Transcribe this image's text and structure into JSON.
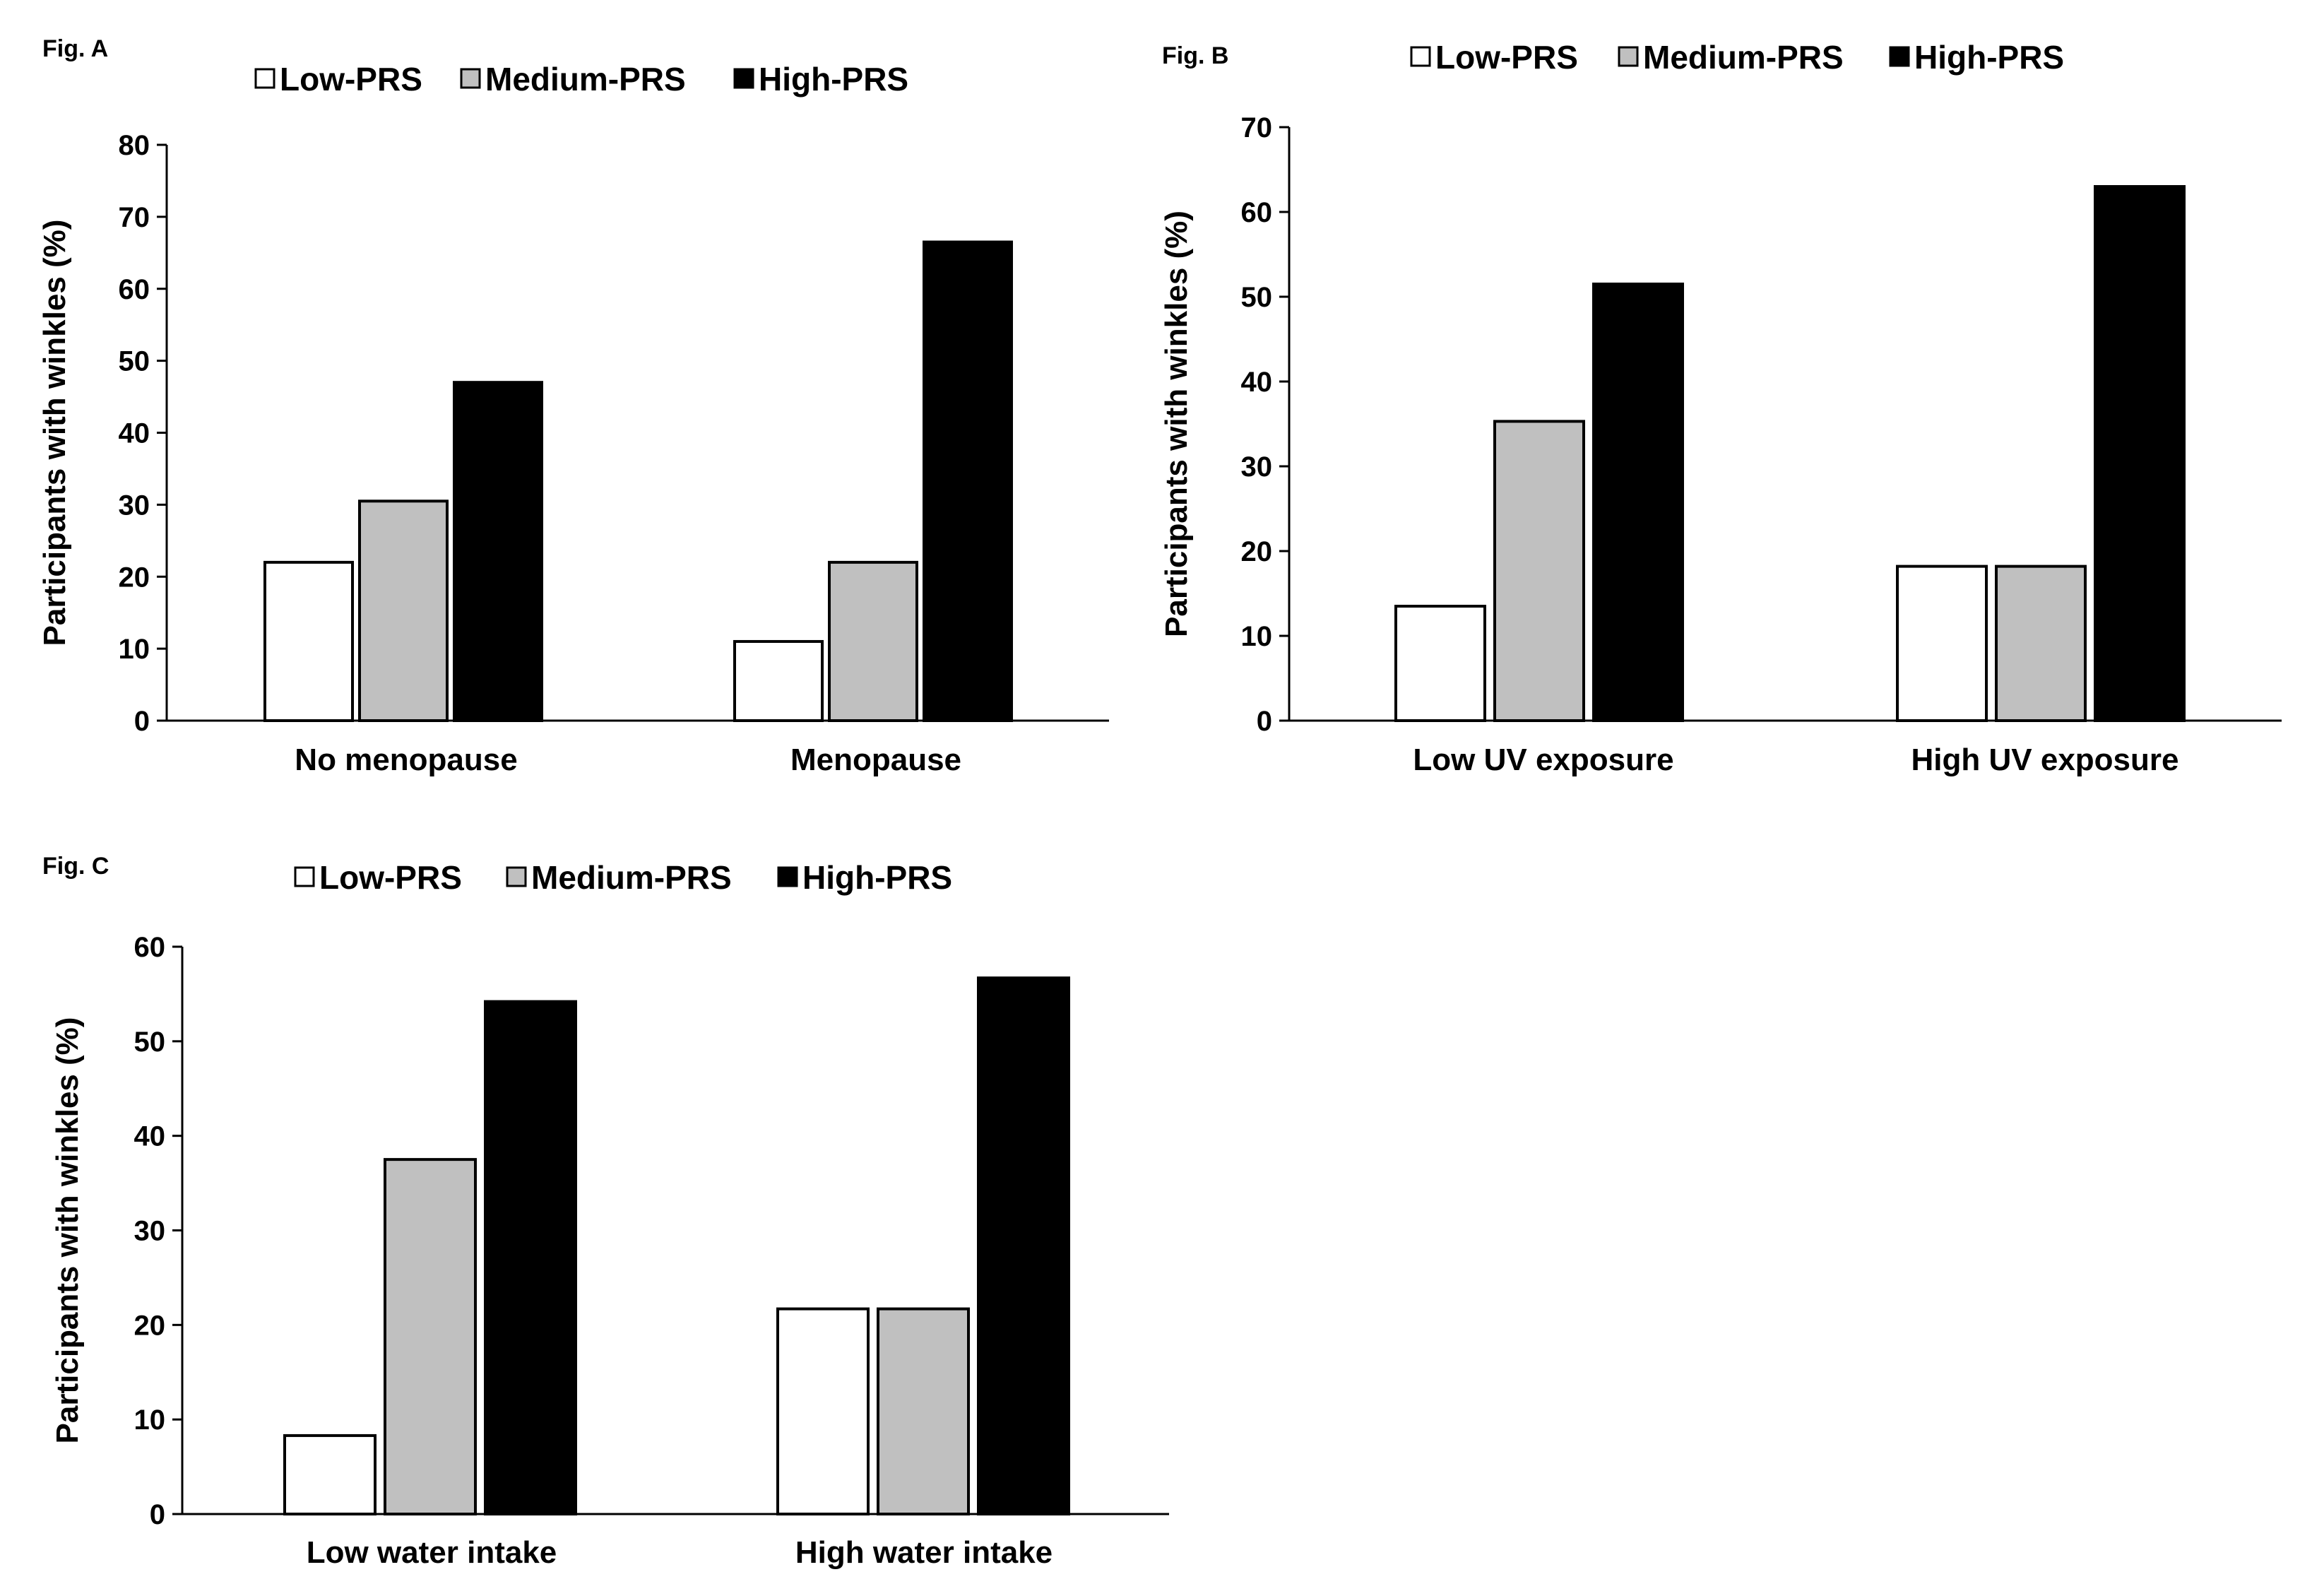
{
  "chart_data": [
    {
      "type": "bar",
      "figure_label": "Fig.  A",
      "categories": [
        "No menopause",
        "Menopause"
      ],
      "series": [
        {
          "name": "Low-PRS",
          "color": "#ffffff",
          "values": [
            22,
            11
          ]
        },
        {
          "name": "Medium-PRS",
          "color": "#c0c0c0",
          "values": [
            30.5,
            22
          ]
        },
        {
          "name": "High-PRS",
          "color": "#000000",
          "values": [
            47,
            66.5
          ]
        }
      ],
      "ylabel": "Participants with winkles (%)",
      "xlabel": "",
      "ylim": [
        0,
        80
      ],
      "yticks": [
        "0",
        "10",
        "20",
        "30",
        "40",
        "50",
        "60",
        "70",
        "80"
      ],
      "legend": "top"
    },
    {
      "type": "bar",
      "figure_label": "Fig.  B",
      "categories": [
        "Low UV exposure",
        "High UV exposure"
      ],
      "series": [
        {
          "name": "Low-PRS",
          "color": "#ffffff",
          "values": [
            13.5,
            18.2
          ]
        },
        {
          "name": "Medium-PRS",
          "color": "#c0c0c0",
          "values": [
            35.3,
            18.2
          ]
        },
        {
          "name": "High-PRS",
          "color": "#000000",
          "values": [
            51.5,
            63
          ]
        }
      ],
      "ylabel": "Participants with winkles (%)",
      "xlabel": "",
      "ylim": [
        0,
        70
      ],
      "yticks": [
        "0",
        "10",
        "20",
        "30",
        "40",
        "50",
        "60",
        "70"
      ],
      "legend": "top"
    },
    {
      "type": "bar",
      "figure_label": "Fig.  C",
      "categories": [
        "Low water intake",
        "High water intake"
      ],
      "series": [
        {
          "name": "Low-PRS",
          "color": "#ffffff",
          "values": [
            8.3,
            21.7
          ]
        },
        {
          "name": "Medium-PRS",
          "color": "#c0c0c0",
          "values": [
            37.5,
            21.7
          ]
        },
        {
          "name": "High-PRS",
          "color": "#000000",
          "values": [
            54.2,
            56.7
          ]
        }
      ],
      "ylabel": "Participants with winkles (%)",
      "xlabel": "",
      "ylim": [
        0,
        60
      ],
      "yticks": [
        "0",
        "10",
        "20",
        "30",
        "40",
        "50",
        "60"
      ],
      "legend": "top"
    }
  ]
}
